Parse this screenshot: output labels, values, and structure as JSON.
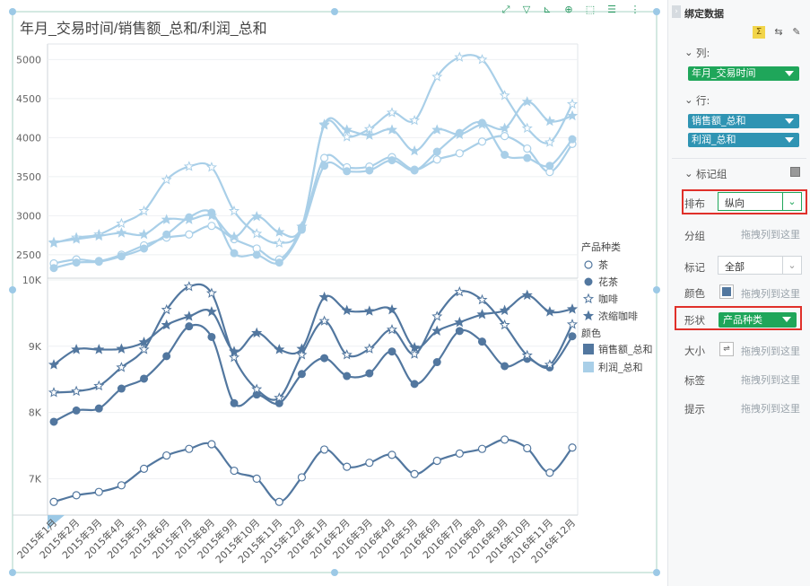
{
  "chart_title": "年月_交易时间/销售额_总和/利润_总和",
  "toolbar": {
    "icons": [
      "fit-icon",
      "filter-icon",
      "axis-icon",
      "zoom-icon",
      "select-icon",
      "list-icon",
      "more-icon"
    ]
  },
  "colors": {
    "sales": "#52779f",
    "profit": "#a9cfe8",
    "accent_green": "#1fa65a",
    "accent_teal": "#2f94b3",
    "highlight_red": "#e0302a"
  },
  "legend": {
    "shape_title": "产品种类",
    "shapes": [
      {
        "label": "茶",
        "shape": "open-circle"
      },
      {
        "label": "花茶",
        "shape": "filled-circle"
      },
      {
        "label": "咖啡",
        "shape": "open-star"
      },
      {
        "label": "浓缩咖啡",
        "shape": "filled-star"
      }
    ],
    "color_title": "颜色",
    "colors": [
      {
        "label": "销售额_总和",
        "color": "#52779f"
      },
      {
        "label": "利润_总和",
        "color": "#a9cfe8"
      }
    ]
  },
  "chart_data": {
    "type": "line",
    "categories": [
      "2015年1月",
      "2015年2月",
      "2015年3月",
      "2015年4月",
      "2015年5月",
      "2015年6月",
      "2015年7月",
      "2015年8月",
      "2015年9月",
      "2015年10月",
      "2015年11月",
      "2015年12月",
      "2016年1月",
      "2016年2月",
      "2016年3月",
      "2016年4月",
      "2016年5月",
      "2016年6月",
      "2016年7月",
      "2016年8月",
      "2016年9月",
      "2016年10月",
      "2016年11月",
      "2016年12月"
    ],
    "panels": [
      {
        "measure": "利润_总和",
        "ylim": [
          2200,
          5200
        ],
        "yticks": [
          "2500",
          "3000",
          "3500",
          "4000",
          "4500",
          "5000"
        ],
        "ytick_values": [
          2500,
          3000,
          3500,
          4000,
          4500,
          5000
        ],
        "color": "#a9cfe8",
        "series": [
          {
            "name": "茶",
            "shape": "open-circle",
            "values": [
              2390,
              2440,
              2420,
              2500,
              2620,
              2720,
              2760,
              2870,
              2700,
              2580,
              2440,
              2850,
              3740,
              3620,
              3630,
              3750,
              3590,
              3720,
              3800,
              3950,
              4020,
              3860,
              3560,
              3920
            ]
          },
          {
            "name": "花茶",
            "shape": "filled-circle",
            "values": [
              2330,
              2400,
              2410,
              2480,
              2580,
              2760,
              2980,
              3040,
              2520,
              2500,
              2400,
              2820,
              3640,
              3570,
              3580,
              3710,
              3580,
              3820,
              4060,
              4190,
              3780,
              3740,
              3640,
              3980
            ]
          },
          {
            "name": "咖啡",
            "shape": "open-star",
            "values": [
              2650,
              2720,
              2760,
              2900,
              3060,
              3460,
              3630,
              3620,
              3060,
              2770,
              2650,
              2860,
              4160,
              4010,
              4110,
              4320,
              4220,
              4780,
              5030,
              5000,
              4540,
              4120,
              3940,
              4430
            ]
          },
          {
            "name": "浓缩咖啡",
            "shape": "filled-star",
            "values": [
              2660,
              2700,
              2740,
              2780,
              2760,
              2950,
              2950,
              3000,
              2730,
              2990,
              2790,
              2860,
              4170,
              4100,
              4030,
              4100,
              3830,
              4100,
              4040,
              4170,
              4120,
              4460,
              4210,
              4280
            ]
          }
        ]
      },
      {
        "measure": "销售额_总和",
        "ylim": [
          6450,
          10000
        ],
        "yticks": [
          "7K",
          "8K",
          "9K",
          "10K"
        ],
        "ytick_values": [
          7000,
          8000,
          9000,
          10000
        ],
        "color": "#52779f",
        "series": [
          {
            "name": "茶",
            "shape": "open-circle",
            "values": [
              6650,
              6750,
              6800,
              6900,
              7150,
              7350,
              7450,
              7520,
              7120,
              7000,
              6650,
              7020,
              7440,
              7180,
              7240,
              7360,
              7070,
              7270,
              7380,
              7450,
              7590,
              7460,
              7090,
              7470
            ]
          },
          {
            "name": "花茶",
            "shape": "filled-circle",
            "values": [
              7860,
              8030,
              8060,
              8360,
              8510,
              8850,
              9300,
              9140,
              8140,
              8270,
              8140,
              8580,
              8820,
              8550,
              8590,
              8920,
              8430,
              8760,
              9230,
              9070,
              8700,
              8810,
              8680,
              9150
            ]
          },
          {
            "name": "咖啡",
            "shape": "open-star",
            "values": [
              8300,
              8320,
              8400,
              8680,
              8950,
              9550,
              9900,
              9800,
              8830,
              8350,
              8220,
              8870,
              9380,
              8870,
              8960,
              9250,
              8880,
              9450,
              9820,
              9700,
              9320,
              8860,
              8720,
              9330
            ]
          },
          {
            "name": "浓缩咖啡",
            "shape": "filled-star",
            "values": [
              8720,
              8950,
              8950,
              8960,
              9060,
              9320,
              9450,
              9520,
              8920,
              9200,
              8950,
              8960,
              9740,
              9540,
              9530,
              9550,
              8980,
              9230,
              9360,
              9480,
              9540,
              9770,
              9520,
              9560
            ]
          }
        ]
      }
    ]
  },
  "panel": {
    "title": "绑定数据",
    "columns_label": "列:",
    "columns": [
      {
        "label": "年月_交易时间"
      }
    ],
    "rows_label": "行:",
    "rows": [
      {
        "label": "销售额_总和"
      },
      {
        "label": "利润_总和"
      }
    ],
    "marks_label": "标记组",
    "layout_label": "排布",
    "layout_value": "纵向",
    "group_label": "分组",
    "group_hint": "拖拽列到这里",
    "mark_label": "标记",
    "mark_value": "全部",
    "color_label": "颜色",
    "color_hint": "拖拽列到这里",
    "shape_label": "形状",
    "shape_value": "产品种类",
    "size_label": "大小",
    "size_hint": "拖拽列到这里",
    "tag_label": "标签",
    "tag_hint": "拖拽列到这里",
    "tooltip_label": "提示",
    "tooltip_hint": "拖拽列到这里"
  }
}
